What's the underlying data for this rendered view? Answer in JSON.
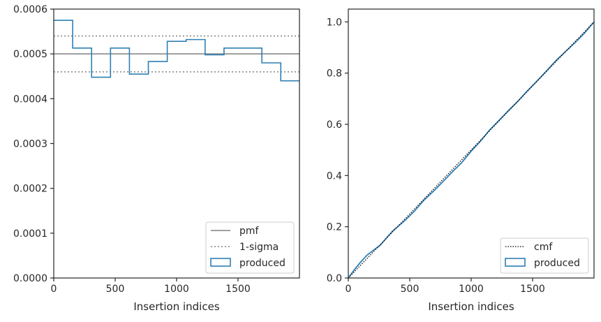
{
  "chart_data": [
    {
      "type": "histogram-step",
      "xlabel": "Insertion indices",
      "ylabel": "",
      "xlim": [
        0,
        2000
      ],
      "ylim": [
        0,
        0.0006
      ],
      "xticks": [
        0,
        500,
        1000,
        1500
      ],
      "yticks": [
        0,
        0.0001,
        0.0002,
        0.0003,
        0.0004,
        0.0005,
        0.0006
      ],
      "xtick_labels": [
        "0",
        "500",
        "1000",
        "1500"
      ],
      "ytick_labels": [
        "0.0000",
        "0.0001",
        "0.0002",
        "0.0003",
        "0.0004",
        "0.0005",
        "0.0006"
      ],
      "bin_edges": [
        0,
        154,
        308,
        462,
        616,
        770,
        924,
        1078,
        1232,
        1386,
        1540,
        1694,
        1848,
        2000
      ],
      "values": [
        0.000575,
        0.000513,
        0.000448,
        0.000513,
        0.000455,
        0.000483,
        0.000528,
        0.000532,
        0.000498,
        0.000513,
        0.000513,
        0.00048,
        0.00044
      ],
      "pmf": 0.0005,
      "sigma_upper": 0.00054,
      "sigma_lower": 0.00046,
      "legend": {
        "position": "lower-right",
        "entries": [
          "pmf",
          "1-sigma",
          "produced"
        ]
      },
      "colors": {
        "produced": "#2f7fb5",
        "pmf": "#808080",
        "sigma": "#808080"
      },
      "grid": false
    },
    {
      "type": "line",
      "xlabel": "Insertion indices",
      "ylabel": "",
      "xlim": [
        0,
        2000
      ],
      "ylim": [
        0,
        1.05
      ],
      "xticks": [
        0,
        500,
        1000,
        1500
      ],
      "yticks": [
        0,
        0.2,
        0.4,
        0.6,
        0.8,
        1.0
      ],
      "xtick_labels": [
        "0",
        "500",
        "1000",
        "1500"
      ],
      "ytick_labels": [
        "0.0",
        "0.2",
        "0.4",
        "0.6",
        "0.8",
        "1.0"
      ],
      "produced_x": [
        0,
        50,
        100,
        154,
        220,
        260,
        308,
        360,
        462,
        540,
        616,
        700,
        770,
        850,
        924,
        1000,
        1078,
        1150,
        1232,
        1300,
        1386,
        1450,
        1540,
        1620,
        1694,
        1770,
        1848,
        1920,
        2000
      ],
      "produced_y": [
        0,
        0.033,
        0.062,
        0.09,
        0.114,
        0.128,
        0.155,
        0.183,
        0.225,
        0.262,
        0.304,
        0.342,
        0.376,
        0.416,
        0.451,
        0.495,
        0.535,
        0.578,
        0.618,
        0.652,
        0.693,
        0.727,
        0.771,
        0.812,
        0.851,
        0.885,
        0.92,
        0.955,
        1.0
      ],
      "cmf_x": [
        0,
        2000
      ],
      "cmf_y": [
        0,
        1.0
      ],
      "legend": {
        "position": "lower-right",
        "entries": [
          "cmf",
          "produced"
        ]
      },
      "colors": {
        "produced": "#2f7fb5",
        "cmf": "#000000"
      },
      "grid": false
    }
  ]
}
